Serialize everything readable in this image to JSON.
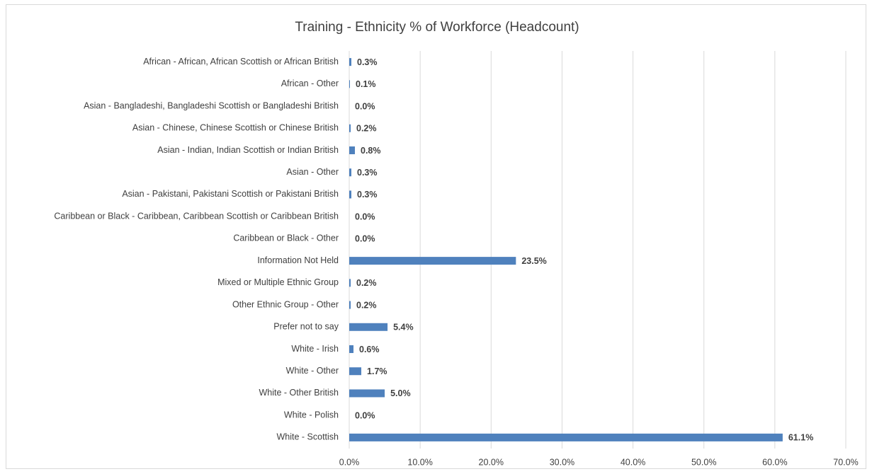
{
  "chart_data": {
    "type": "bar",
    "orientation": "horizontal",
    "title": "Training - Ethnicity % of Workforce (Headcount)",
    "categories": [
      "African - African, African Scottish or African British",
      "African - Other",
      "Asian - Bangladeshi, Bangladeshi Scottish or Bangladeshi British",
      "Asian - Chinese, Chinese Scottish or Chinese British",
      "Asian - Indian, Indian Scottish or Indian British",
      "Asian - Other",
      "Asian - Pakistani, Pakistani Scottish or Pakistani British",
      "Caribbean or Black - Caribbean, Caribbean Scottish or Caribbean British",
      "Caribbean or Black - Other",
      "Information Not Held",
      "Mixed or Multiple Ethnic Group",
      "Other Ethnic Group - Other",
      "Prefer not to say",
      "White - Irish",
      "White - Other",
      "White - Other British",
      "White - Polish",
      "White - Scottish"
    ],
    "values": [
      0.3,
      0.1,
      0.0,
      0.2,
      0.8,
      0.3,
      0.3,
      0.0,
      0.0,
      23.5,
      0.2,
      0.2,
      5.4,
      0.6,
      1.7,
      5.0,
      0.0,
      61.1
    ],
    "value_labels": [
      "0.3%",
      "0.1%",
      "0.0%",
      "0.2%",
      "0.8%",
      "0.3%",
      "0.3%",
      "0.0%",
      "0.0%",
      "23.5%",
      "0.2%",
      "0.2%",
      "5.4%",
      "0.6%",
      "1.7%",
      "5.0%",
      "0.0%",
      "61.1%"
    ],
    "color": "#4f81bd",
    "xlim": [
      0,
      70
    ],
    "xticks": [
      {
        "value": 0,
        "label": "0.0%"
      },
      {
        "value": 10,
        "label": "10.0%"
      },
      {
        "value": 20,
        "label": "20.0%"
      },
      {
        "value": 30,
        "label": "30.0%"
      },
      {
        "value": 40,
        "label": "40.0%"
      },
      {
        "value": 50,
        "label": "50.0%"
      },
      {
        "value": 60,
        "label": "60.0%"
      },
      {
        "value": 70,
        "label": "70.0%"
      }
    ],
    "grid": true
  }
}
